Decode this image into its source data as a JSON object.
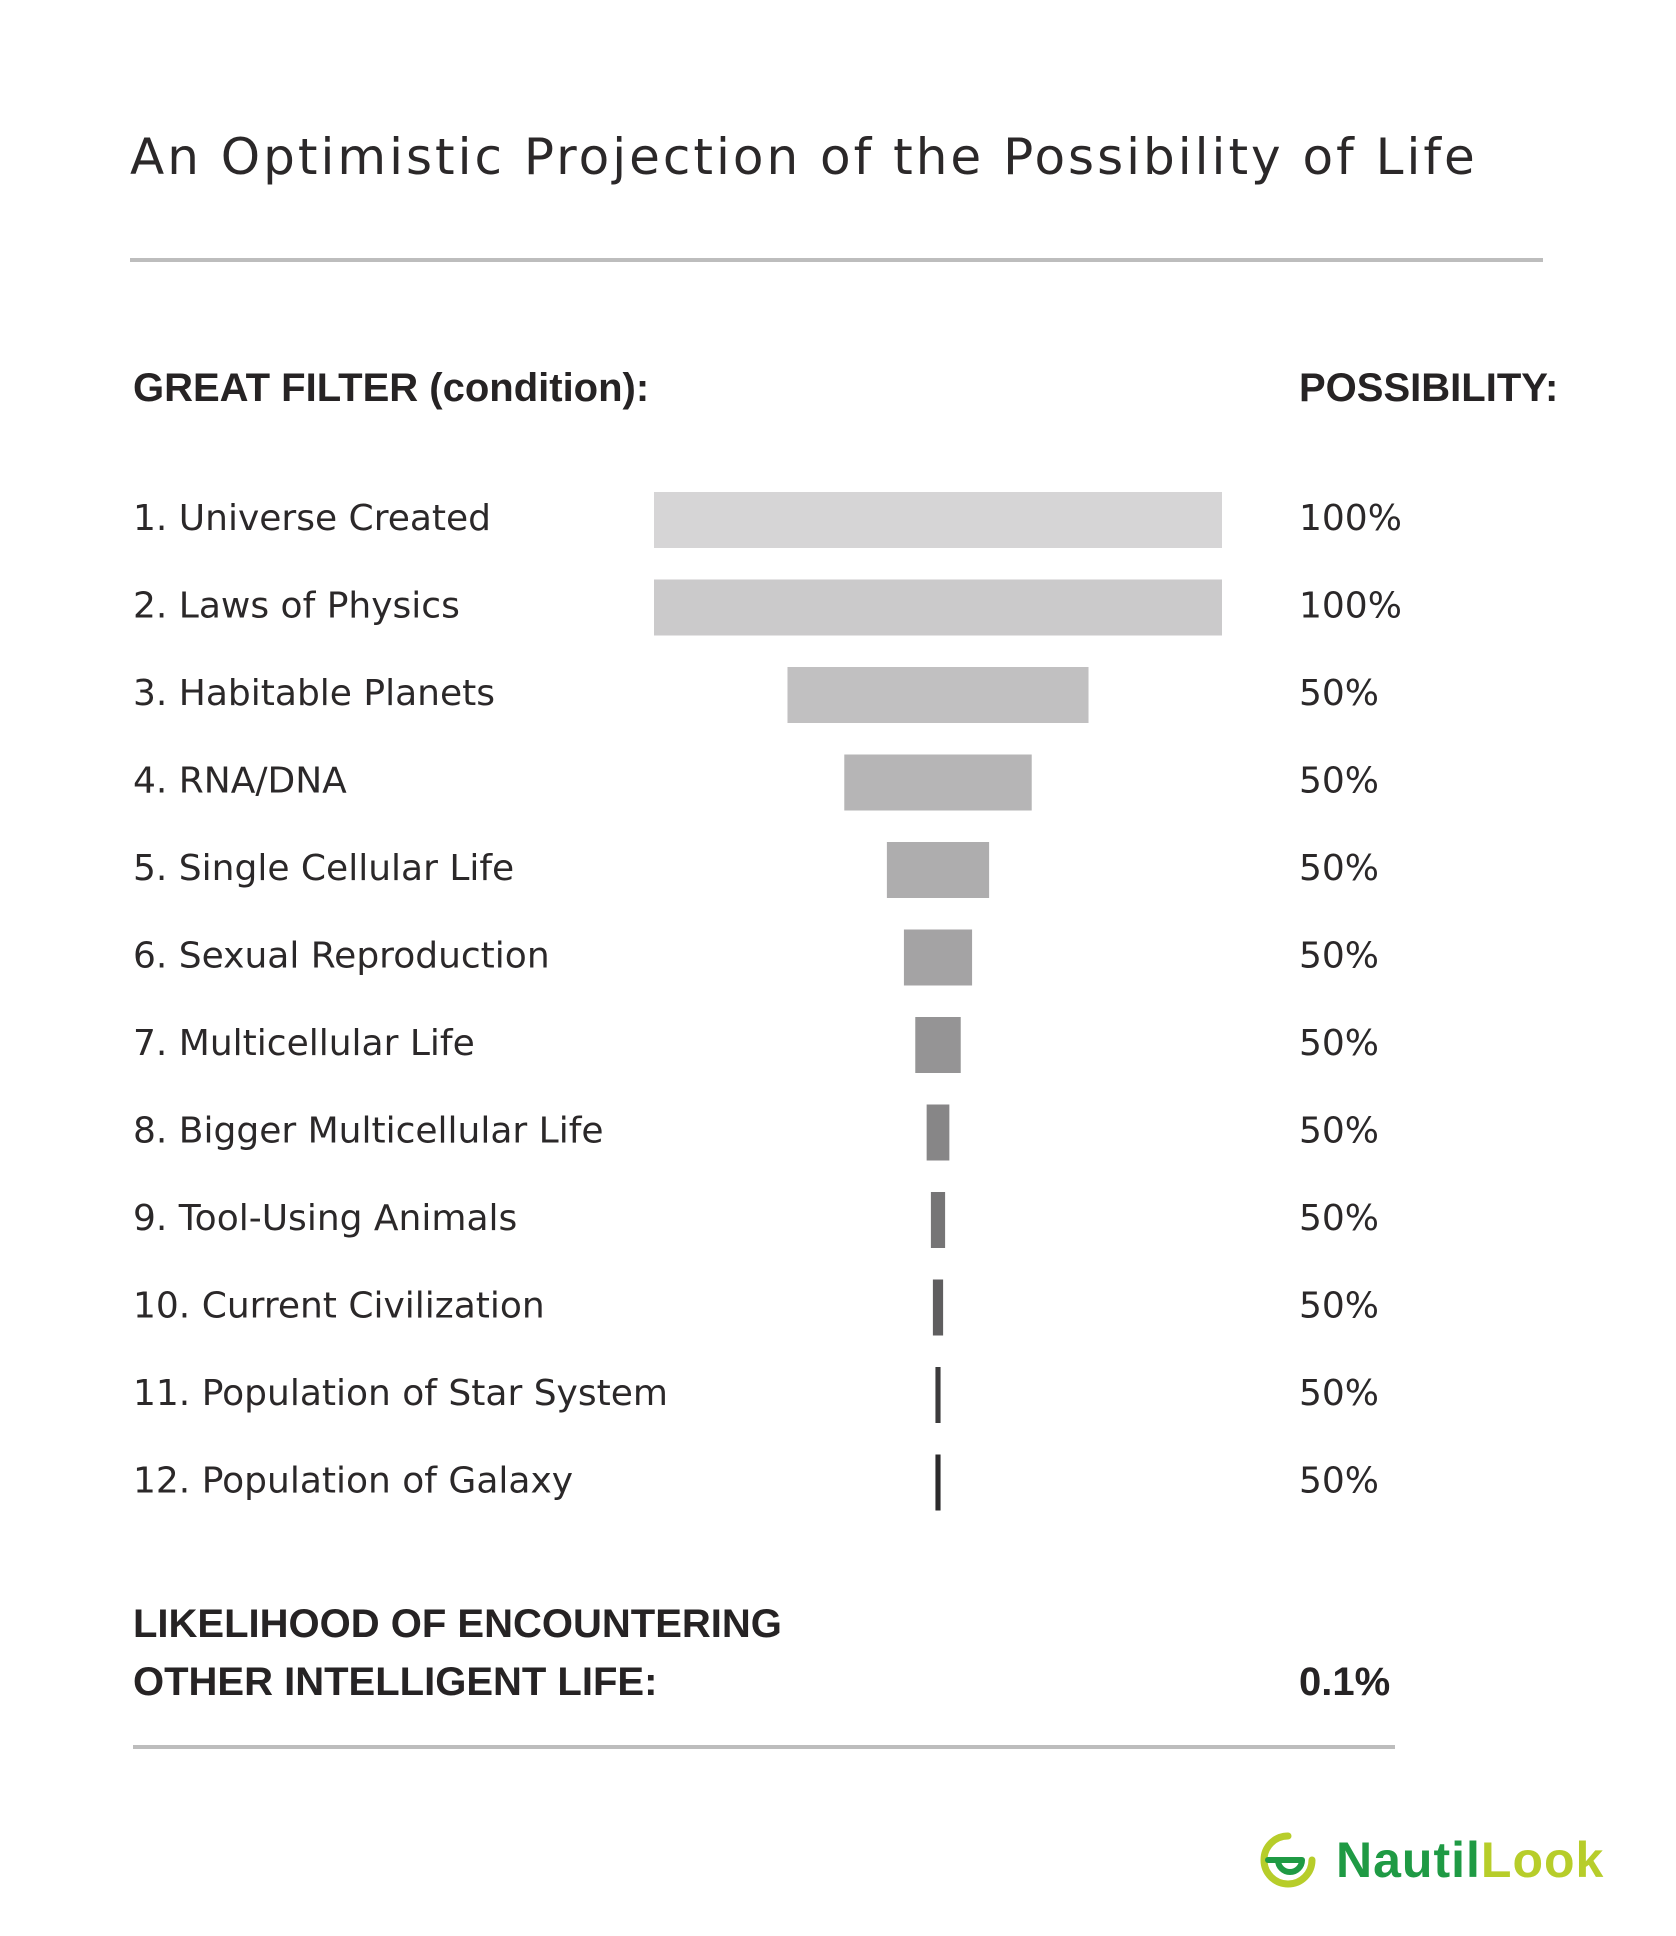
{
  "title": "An Optimistic Projection of the Possibility of Life",
  "header": {
    "left": "GREAT FILTER (condition):",
    "right": "POSSIBILITY:"
  },
  "chart_data": {
    "type": "bar",
    "orientation": "horizontal-centered-funnel",
    "categories": [
      "1. Universe Created",
      "2. Laws of Physics",
      "3. Habitable Planets",
      "4. RNA/DNA",
      "5. Single Cellular Life",
      "6. Sexual Reproduction",
      "7. Multicellular Life",
      "8. Bigger Multicellular Life",
      "9. Tool-Using Animals",
      "10. Current Civilization",
      "11. Population of Star System",
      "12. Population of Galaxy"
    ],
    "values": [
      100,
      100,
      50,
      50,
      50,
      50,
      50,
      50,
      50,
      50,
      50,
      50
    ],
    "value_labels": [
      "100%",
      "100%",
      "50%",
      "50%",
      "50%",
      "50%",
      "50%",
      "50%",
      "50%",
      "50%",
      "50%",
      "50%"
    ],
    "relative_widths": [
      1.0,
      1.0,
      0.53,
      0.33,
      0.18,
      0.12,
      0.08,
      0.04,
      0.025,
      0.018,
      0.009,
      0.009
    ],
    "bar_colors": [
      "#d6d5d6",
      "#cbcacb",
      "#c1c0c1",
      "#b6b5b6",
      "#aeadae",
      "#a4a3a4",
      "#959495",
      "#878687",
      "#767576",
      "#5f5e5f",
      "#3c3b3c",
      "#2b2a2b"
    ],
    "grid": false,
    "legend": "none"
  },
  "footer": {
    "line1": "LIKELIHOOD OF  ENCOUNTERING",
    "line2": "OTHER INTELLIGENT LIFE:",
    "value": "0.1%"
  },
  "logo": {
    "part1": "Nautil",
    "part2": "Look",
    "colors": {
      "primary": "#1f9a44",
      "secondary": "#b7cd2a"
    }
  }
}
